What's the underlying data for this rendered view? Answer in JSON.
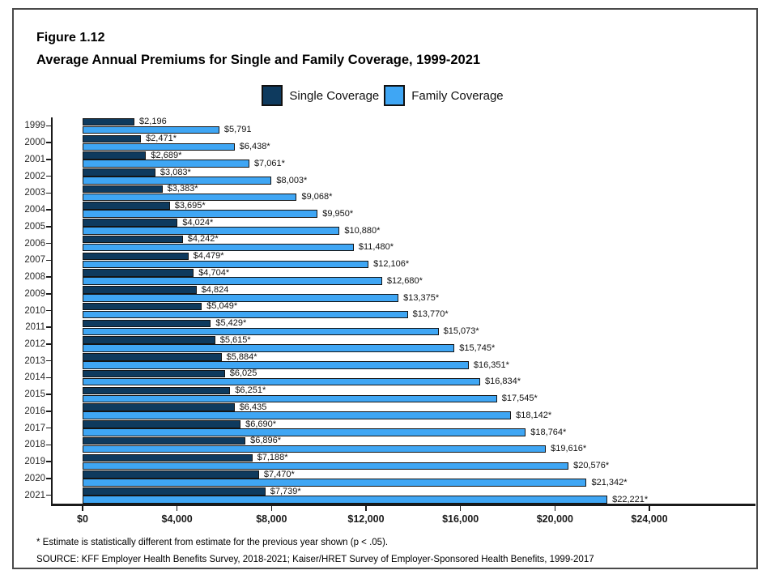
{
  "header": {
    "figure_label": "Figure 1.12",
    "title": "Average Annual Premiums for Single and Family Coverage, 1999-2021"
  },
  "legend": {
    "single_label": "Single Coverage",
    "family_label": "Family Coverage"
  },
  "colors": {
    "single": "#0E3A5E",
    "family": "#3FA6F4",
    "bar_border": "#141414",
    "axis": "#1a1a1a"
  },
  "chart_data": {
    "type": "bar",
    "orientation": "horizontal",
    "title": "Average Annual Premiums for Single and Family Coverage, 1999-2021",
    "xlabel": "",
    "ylabel": "",
    "xlim": [
      0,
      24000
    ],
    "x_ticks": [
      "$0",
      "$4,000",
      "$8,000",
      "$12,000",
      "$16,000",
      "$20,000",
      "$24,000"
    ],
    "x_tick_values": [
      0,
      4000,
      8000,
      12000,
      16000,
      20000,
      24000
    ],
    "grid": false,
    "legend_position": "top",
    "categories": [
      "1999",
      "2000",
      "2001",
      "2002",
      "2003",
      "2004",
      "2005",
      "2006",
      "2007",
      "2008",
      "2009",
      "2010",
      "2011",
      "2012",
      "2013",
      "2014",
      "2015",
      "2016",
      "2017",
      "2018",
      "2019",
      "2020",
      "2021"
    ],
    "series": [
      {
        "name": "Single Coverage",
        "color": "#0E3A5E",
        "values": [
          2196,
          2471,
          2689,
          3083,
          3383,
          3695,
          4024,
          4242,
          4479,
          4704,
          4824,
          5049,
          5429,
          5615,
          5884,
          6025,
          6251,
          6435,
          6690,
          6896,
          7188,
          7470,
          7739
        ],
        "labels": [
          "$2,196",
          "$2,471*",
          "$2,689*",
          "$3,083*",
          "$3,383*",
          "$3,695*",
          "$4,024*",
          "$4,242*",
          "$4,479*",
          "$4,704*",
          "$4,824",
          "$5,049*",
          "$5,429*",
          "$5,615*",
          "$5,884*",
          "$6,025",
          "$6,251*",
          "$6,435",
          "$6,690*",
          "$6,896*",
          "$7,188*",
          "$7,470*",
          "$7,739*"
        ]
      },
      {
        "name": "Family Coverage",
        "color": "#3FA6F4",
        "values": [
          5791,
          6438,
          7061,
          8003,
          9068,
          9950,
          10880,
          11480,
          12106,
          12680,
          13375,
          13770,
          15073,
          15745,
          16351,
          16834,
          17545,
          18142,
          18764,
          19616,
          20576,
          21342,
          22221
        ],
        "labels": [
          "$5,791",
          "$6,438*",
          "$7,061*",
          "$8,003*",
          "$9,068*",
          "$9,950*",
          "$10,880*",
          "$11,480*",
          "$12,106*",
          "$12,680*",
          "$13,375*",
          "$13,770*",
          "$15,073*",
          "$15,745*",
          "$16,351*",
          "$16,834*",
          "$17,545*",
          "$18,142*",
          "$18,764*",
          "$19,616*",
          "$20,576*",
          "$21,342*",
          "$22,221*"
        ]
      }
    ]
  },
  "footnotes": {
    "note": "* Estimate is statistically different from estimate for the previous year shown (p < .05).",
    "source": "SOURCE: KFF Employer Health Benefits Survey, 2018-2021; Kaiser/HRET Survey of Employer-Sponsored Health Benefits, 1999-2017"
  }
}
